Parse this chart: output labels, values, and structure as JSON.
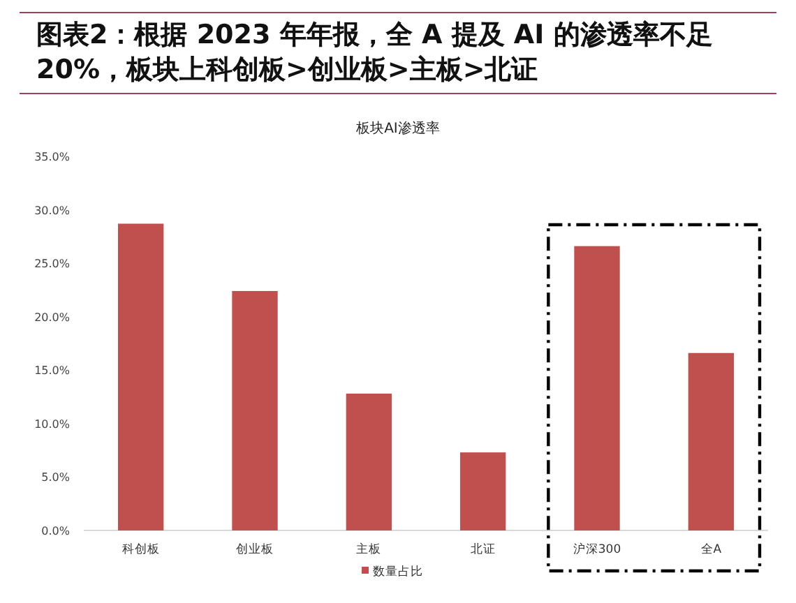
{
  "chart_data": {
    "type": "bar",
    "title": "图表2：根据 2023 年年报，全 A 提及 AI 的渗透率不足20%，板块上科创板>创业板>主板>北证",
    "subtitle": "板块AI渗透率",
    "categories": [
      "科创板",
      "创业板",
      "主板",
      "北证",
      "沪深300",
      "全A"
    ],
    "series": [
      {
        "name": "数量占比",
        "color": "#c0504d",
        "values": [
          28.7,
          22.4,
          12.8,
          7.3,
          26.6,
          16.6
        ]
      }
    ],
    "ylim": [
      0,
      35
    ],
    "yticks": [
      {
        "value": 0,
        "label": "0.0%"
      },
      {
        "value": 5,
        "label": "5.0%"
      },
      {
        "value": 10,
        "label": "10.0%"
      },
      {
        "value": 15,
        "label": "15.0%"
      },
      {
        "value": 20,
        "label": "20.0%"
      },
      {
        "value": 25,
        "label": "25.0%"
      },
      {
        "value": 30,
        "label": "30.0%"
      },
      {
        "value": 35,
        "label": "35.0%"
      }
    ],
    "grid": false,
    "legend": "bottom"
  }
}
